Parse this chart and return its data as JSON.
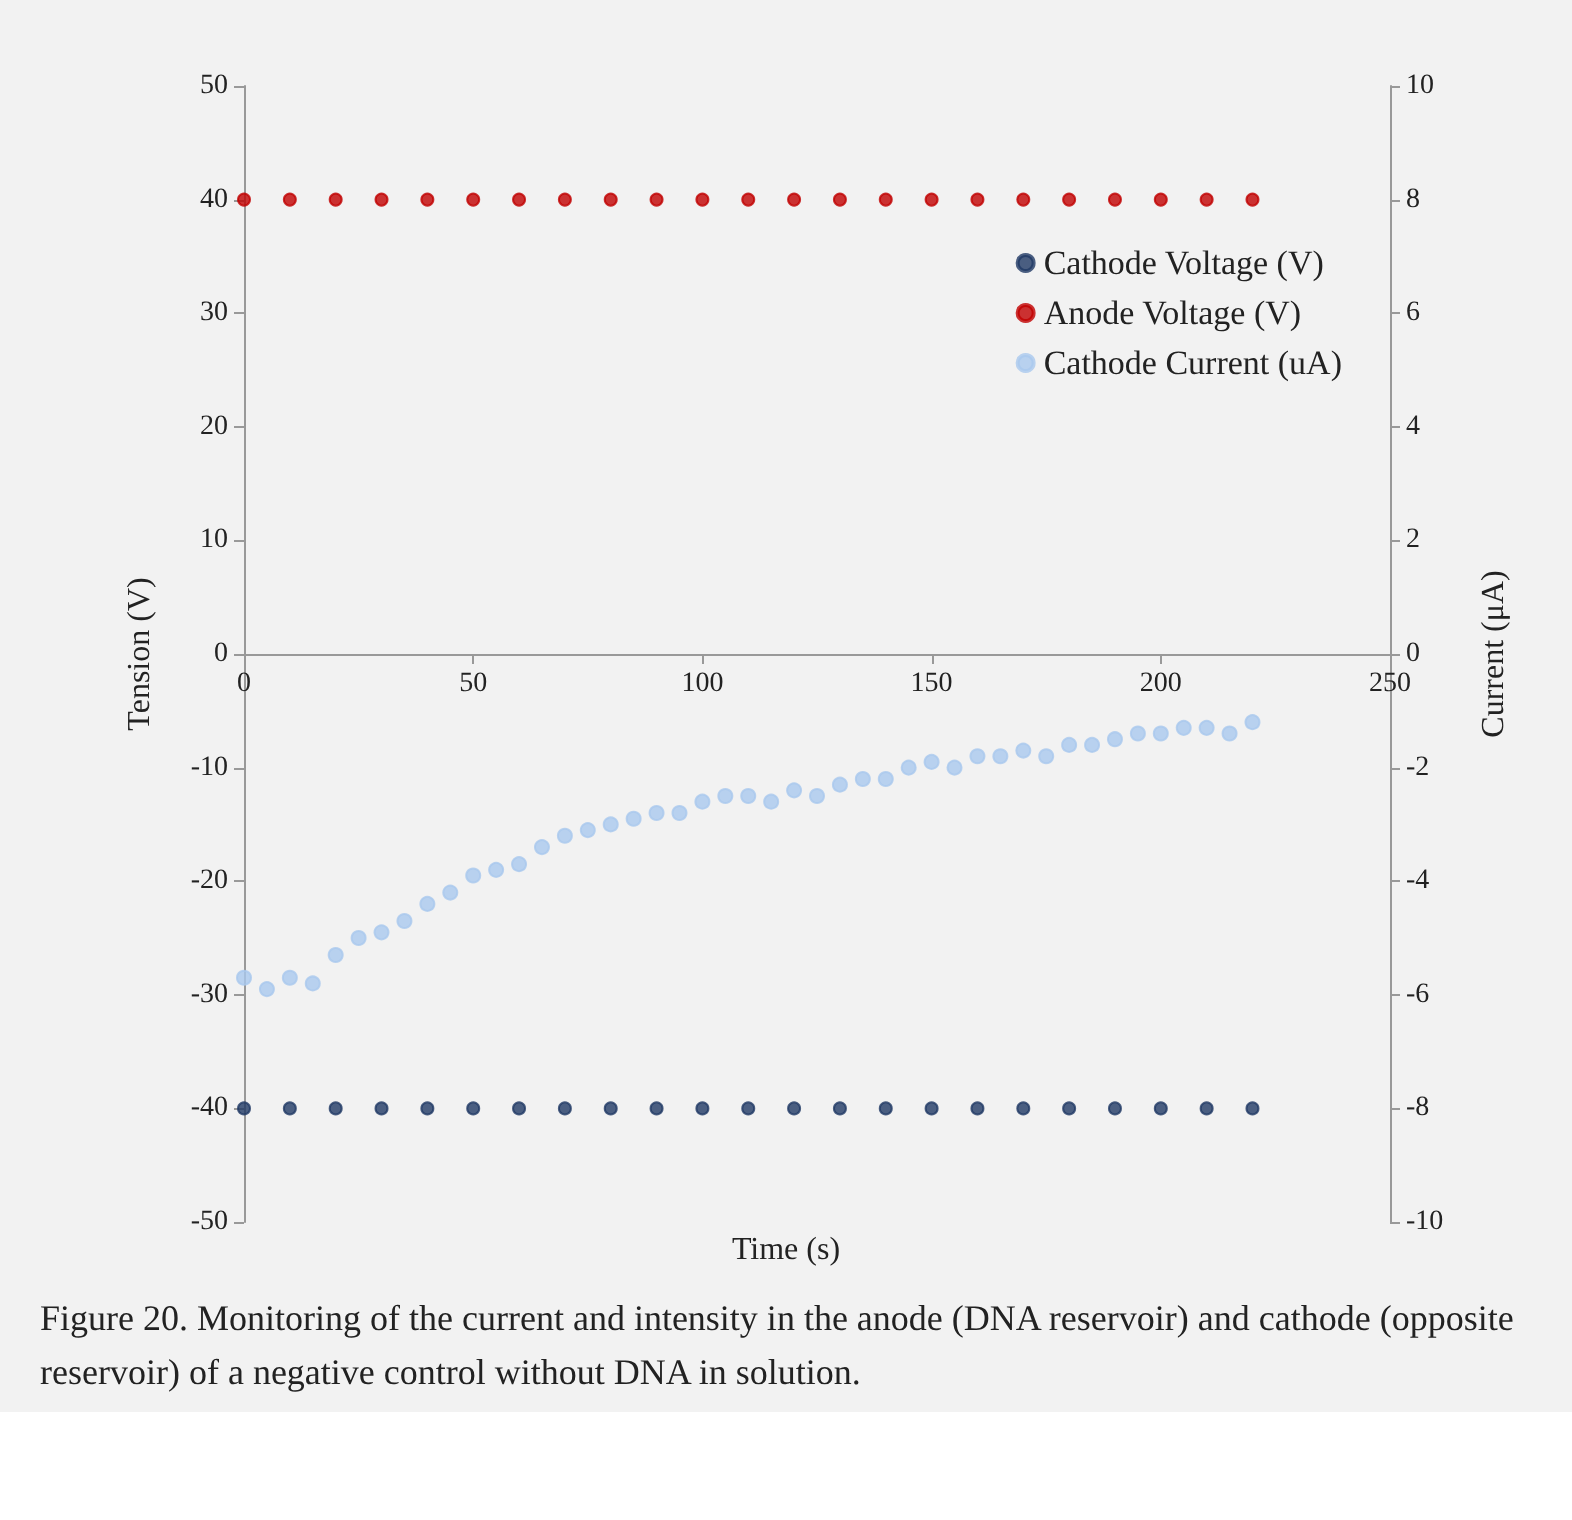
{
  "chart_data": {
    "type": "scatter",
    "xlabel": "Time (s)",
    "ylabel": "Tension (V)",
    "y2label": "Current (μA)",
    "xlim": [
      0,
      250
    ],
    "xticks": [
      0,
      50,
      100,
      150,
      200,
      250
    ],
    "ylim": [
      -50,
      50
    ],
    "yticks": [
      -50,
      -40,
      -30,
      -20,
      -10,
      0,
      10,
      20,
      30,
      40,
      50
    ],
    "y2lim": [
      -10,
      10
    ],
    "y2ticks": [
      -10,
      -8,
      -6,
      -4,
      -2,
      0,
      2,
      4,
      6,
      8,
      10
    ],
    "x": [
      0,
      10,
      20,
      30,
      40,
      50,
      60,
      70,
      80,
      90,
      100,
      110,
      120,
      130,
      140,
      150,
      160,
      170,
      180,
      190,
      200,
      210,
      220
    ],
    "series": [
      {
        "name": "Cathode Voltage (V)",
        "color": "#1f3864",
        "values": [
          -40,
          -40,
          -40,
          -40,
          -40,
          -40,
          -40,
          -40,
          -40,
          -40,
          -40,
          -40,
          -40,
          -40,
          -40,
          -40,
          -40,
          -40,
          -40,
          -40,
          -40,
          -40,
          -40
        ]
      },
      {
        "name": "Anode Voltage (V)",
        "color": "#c00000",
        "values": [
          40,
          40,
          40,
          40,
          40,
          40,
          40,
          40,
          40,
          40,
          40,
          40,
          40,
          40,
          40,
          40,
          40,
          40,
          40,
          40,
          40,
          40,
          40
        ]
      },
      {
        "name": "Cathode Current (uA)",
        "color": "#a9c8ee",
        "axis": "y2",
        "x": [
          0,
          5,
          10,
          15,
          20,
          25,
          30,
          35,
          40,
          45,
          50,
          55,
          60,
          65,
          70,
          75,
          80,
          85,
          90,
          95,
          100,
          105,
          110,
          115,
          120,
          125,
          130,
          135,
          140,
          145,
          150,
          155,
          160,
          165,
          170,
          175,
          180,
          185,
          190,
          195,
          200,
          205,
          210,
          215,
          220
        ],
        "values": [
          -5.7,
          -5.9,
          -5.7,
          -5.8,
          -5.3,
          -5.0,
          -4.9,
          -4.7,
          -4.4,
          -4.2,
          -3.9,
          -3.8,
          -3.7,
          -3.4,
          -3.2,
          -3.1,
          -3.0,
          -2.9,
          -2.8,
          -2.8,
          -2.6,
          -2.5,
          -2.5,
          -2.6,
          -2.4,
          -2.5,
          -2.3,
          -2.2,
          -2.2,
          -2.0,
          -1.9,
          -2.0,
          -1.8,
          -1.8,
          -1.7,
          -1.8,
          -1.6,
          -1.6,
          -1.5,
          -1.4,
          -1.4,
          -1.3,
          -1.3,
          -1.4,
          -1.2
        ]
      }
    ],
    "marker": "circle",
    "legend": "top right",
    "grid": false,
    "annotations": [
      "Figure 20. Monitoring of the current and intensity in the anode (DNA reservoir) and cathode (opposite reservoir) of a negative control without DNA in solution."
    ]
  }
}
